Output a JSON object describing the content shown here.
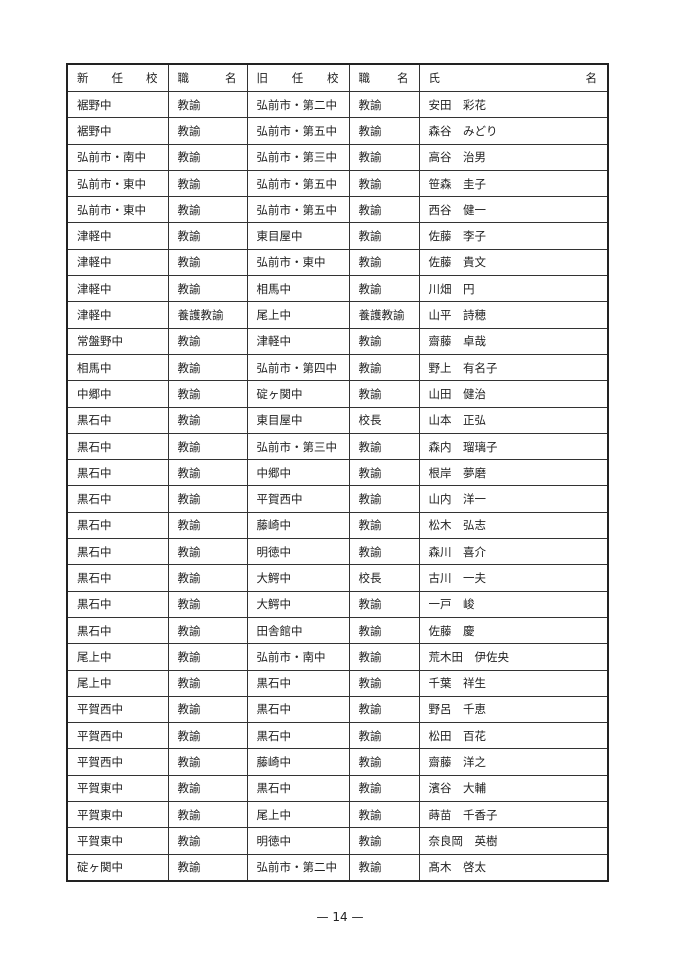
{
  "headers": [
    [
      "新",
      "任",
      "校"
    ],
    [
      "職",
      "名"
    ],
    [
      "旧",
      "任",
      "校"
    ],
    [
      "職",
      "名"
    ],
    [
      "氏",
      "名"
    ]
  ],
  "rows": [
    [
      "裾野中",
      "教諭",
      "弘前市・第二中",
      "教諭",
      "安田　彩花"
    ],
    [
      "裾野中",
      "教諭",
      "弘前市・第五中",
      "教諭",
      "森谷　みどり"
    ],
    [
      "弘前市・南中",
      "教諭",
      "弘前市・第三中",
      "教諭",
      "高谷　治男"
    ],
    [
      "弘前市・東中",
      "教諭",
      "弘前市・第五中",
      "教諭",
      "笹森　圭子"
    ],
    [
      "弘前市・東中",
      "教諭",
      "弘前市・第五中",
      "教諭",
      "西谷　健一"
    ],
    [
      "津軽中",
      "教諭",
      "東目屋中",
      "教諭",
      "佐藤　李子"
    ],
    [
      "津軽中",
      "教諭",
      "弘前市・東中",
      "教諭",
      "佐藤　貴文"
    ],
    [
      "津軽中",
      "教諭",
      "相馬中",
      "教諭",
      "川畑　円"
    ],
    [
      "津軽中",
      "養護教諭",
      "尾上中",
      "養護教諭",
      "山平　詩穂"
    ],
    [
      "常盤野中",
      "教諭",
      "津軽中",
      "教諭",
      "齋藤　卓哉"
    ],
    [
      "相馬中",
      "教諭",
      "弘前市・第四中",
      "教諭",
      "野上　有名子"
    ],
    [
      "中郷中",
      "教諭",
      "碇ヶ関中",
      "教諭",
      "山田　健治"
    ],
    [
      "黒石中",
      "教諭",
      "東目屋中",
      "校長",
      "山本　正弘"
    ],
    [
      "黒石中",
      "教諭",
      "弘前市・第三中",
      "教諭",
      "森内　瑠璃子"
    ],
    [
      "黒石中",
      "教諭",
      "中郷中",
      "教諭",
      "根岸　夢磨"
    ],
    [
      "黒石中",
      "教諭",
      "平賀西中",
      "教諭",
      "山内　洋一"
    ],
    [
      "黒石中",
      "教諭",
      "藤崎中",
      "教諭",
      "松木　弘志"
    ],
    [
      "黒石中",
      "教諭",
      "明徳中",
      "教諭",
      "森川　喜介"
    ],
    [
      "黒石中",
      "教諭",
      "大鰐中",
      "校長",
      "古川　一夫"
    ],
    [
      "黒石中",
      "教諭",
      "大鰐中",
      "教諭",
      "一戸　峻"
    ],
    [
      "黒石中",
      "教諭",
      "田舎館中",
      "教諭",
      "佐藤　慶"
    ],
    [
      "尾上中",
      "教諭",
      "弘前市・南中",
      "教諭",
      "荒木田　伊佐央"
    ],
    [
      "尾上中",
      "教諭",
      "黒石中",
      "教諭",
      "千葉　祥生"
    ],
    [
      "平賀西中",
      "教諭",
      "黒石中",
      "教諭",
      "野呂　千恵"
    ],
    [
      "平賀西中",
      "教諭",
      "黒石中",
      "教諭",
      "松田　百花"
    ],
    [
      "平賀西中",
      "教諭",
      "藤崎中",
      "教諭",
      "齋藤　洋之"
    ],
    [
      "平賀東中",
      "教諭",
      "黒石中",
      "教諭",
      "濱谷　大輔"
    ],
    [
      "平賀東中",
      "教諭",
      "尾上中",
      "教諭",
      "蒔苗　千香子"
    ],
    [
      "平賀東中",
      "教諭",
      "明徳中",
      "教諭",
      "奈良岡　英樹"
    ],
    [
      "碇ヶ関中",
      "教諭",
      "弘前市・第二中",
      "教諭",
      "髙木　啓太"
    ]
  ],
  "page_number": "— 14 —"
}
